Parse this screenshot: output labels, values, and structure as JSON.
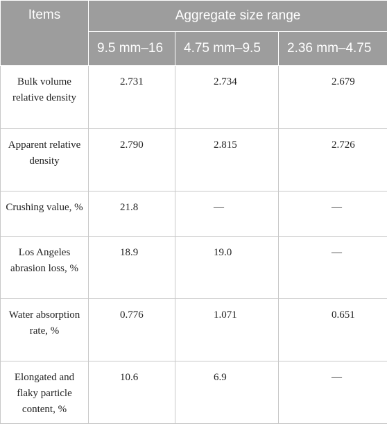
{
  "header": {
    "items": "Items",
    "range": "Aggregate size range",
    "cols": [
      "9.5 mm–16",
      "4.75 mm–9.5",
      "2.36 mm–4.75"
    ]
  },
  "rows": [
    {
      "label": "Bulk volume relative density",
      "v1": "2.731",
      "v2": "2.734",
      "v3": "2.679"
    },
    {
      "label": "Apparent relative density",
      "v1": "2.790",
      "v2": "2.815",
      "v3": "2.726"
    },
    {
      "label": "Crushing value, %",
      "v1": "21.8",
      "v2": "—",
      "v3": "—"
    },
    {
      "label": "Los Angeles abrasion loss, %",
      "v1": "18.9",
      "v2": "19.0",
      "v3": "—"
    },
    {
      "label": "Water absorption rate, %",
      "v1": "0.776",
      "v2": "1.071",
      "v3": "0.651"
    },
    {
      "label": "Elongated and flaky particle content, %",
      "v1": "10.6",
      "v2": "6.9",
      "v3": "—"
    }
  ]
}
